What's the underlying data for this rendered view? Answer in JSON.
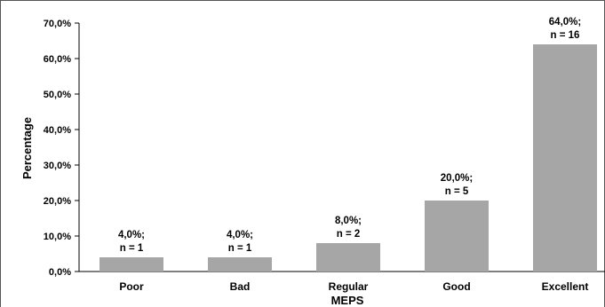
{
  "chart_data": {
    "type": "bar",
    "title": "",
    "xlabel": "MEPS",
    "ylabel": "Percentage",
    "ylim": [
      0,
      70
    ],
    "yticks": [
      "0,0%",
      "10,0%",
      "20,0%",
      "30,0%",
      "40,0%",
      "50,0%",
      "60,0%",
      "70,0%"
    ],
    "categories": [
      "Poor",
      "Bad",
      "Regular",
      "Good",
      "Excellent"
    ],
    "values": [
      4.0,
      4.0,
      8.0,
      20.0,
      64.0
    ],
    "data_labels": [
      [
        "4,0%;",
        "n = 1"
      ],
      [
        "4,0%;",
        "n = 1"
      ],
      [
        "8,0%;",
        "n = 2"
      ],
      [
        "20,0%;",
        "n = 5"
      ],
      [
        "64,0%;",
        "n = 16"
      ]
    ],
    "bar_color": "#a6a6a6",
    "grid": false,
    "legend": "none"
  }
}
